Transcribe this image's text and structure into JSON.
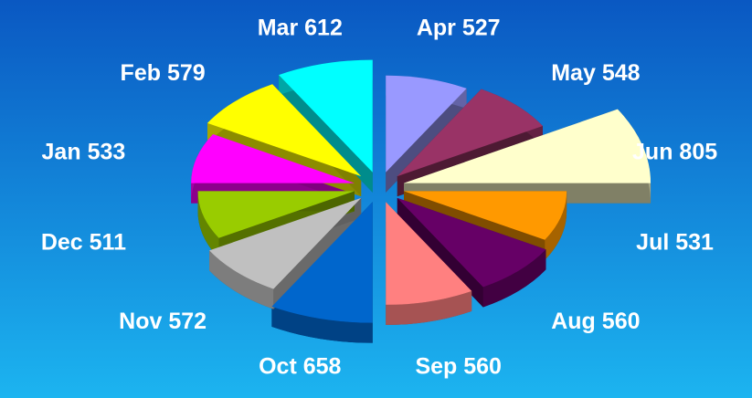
{
  "chart_data": {
    "type": "polar3d",
    "categories": [
      "Jan",
      "Feb",
      "Mar",
      "Apr",
      "May",
      "Jun",
      "Jul",
      "Aug",
      "Sep",
      "Oct",
      "Nov",
      "Dec"
    ],
    "values": [
      533,
      579,
      612,
      527,
      548,
      805,
      531,
      560,
      560,
      658,
      572,
      511
    ],
    "colors": [
      "#ff00ff",
      "#ffff00",
      "#00ffff",
      "#9999ff",
      "#993366",
      "#ffffcc",
      "#ff9900",
      "#660066",
      "#ff8080",
      "#0066cc",
      "#c0c0c0",
      "#99cc00"
    ]
  }
}
